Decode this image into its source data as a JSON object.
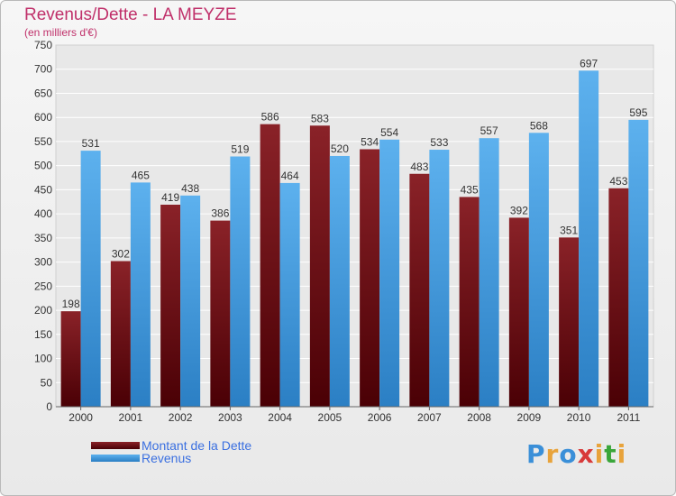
{
  "header": {
    "title": "Revenus/Dette - LA MEYZE",
    "subtitle": "(en milliers d'€)"
  },
  "colors": {
    "dette": "#6b0f14",
    "revenus": "#4ea6e6"
  },
  "logo": {
    "text": "Proxiti",
    "letters": [
      "P",
      "r",
      "o",
      "x",
      "i",
      "t",
      "i"
    ],
    "letter_colors": [
      "#3a8fd8",
      "#e8a33b",
      "#3a8fd8",
      "#d83a3a",
      "#e8a33b",
      "#3aa63a",
      "#e8a33b"
    ]
  },
  "chart_data": {
    "type": "bar",
    "title": "Revenus/Dette - LA MEYZE",
    "subtitle": "(en milliers d'€)",
    "xlabel": "",
    "ylabel": "",
    "ylim": [
      0,
      750
    ],
    "yticks": [
      0,
      50,
      100,
      150,
      200,
      250,
      300,
      350,
      400,
      450,
      500,
      550,
      600,
      650,
      700,
      750
    ],
    "grid": true,
    "legend_position": "bottom-left",
    "categories": [
      "2000",
      "2001",
      "2002",
      "2003",
      "2004",
      "2005",
      "2006",
      "2007",
      "2008",
      "2009",
      "2010",
      "2011"
    ],
    "series": [
      {
        "name": "Montant de la Dette",
        "values": [
          198,
          302,
          419,
          386,
          586,
          583,
          534,
          483,
          435,
          392,
          351,
          453
        ]
      },
      {
        "name": "Revenus",
        "values": [
          531,
          465,
          438,
          519,
          464,
          520,
          554,
          533,
          557,
          568,
          697,
          595
        ]
      }
    ]
  }
}
